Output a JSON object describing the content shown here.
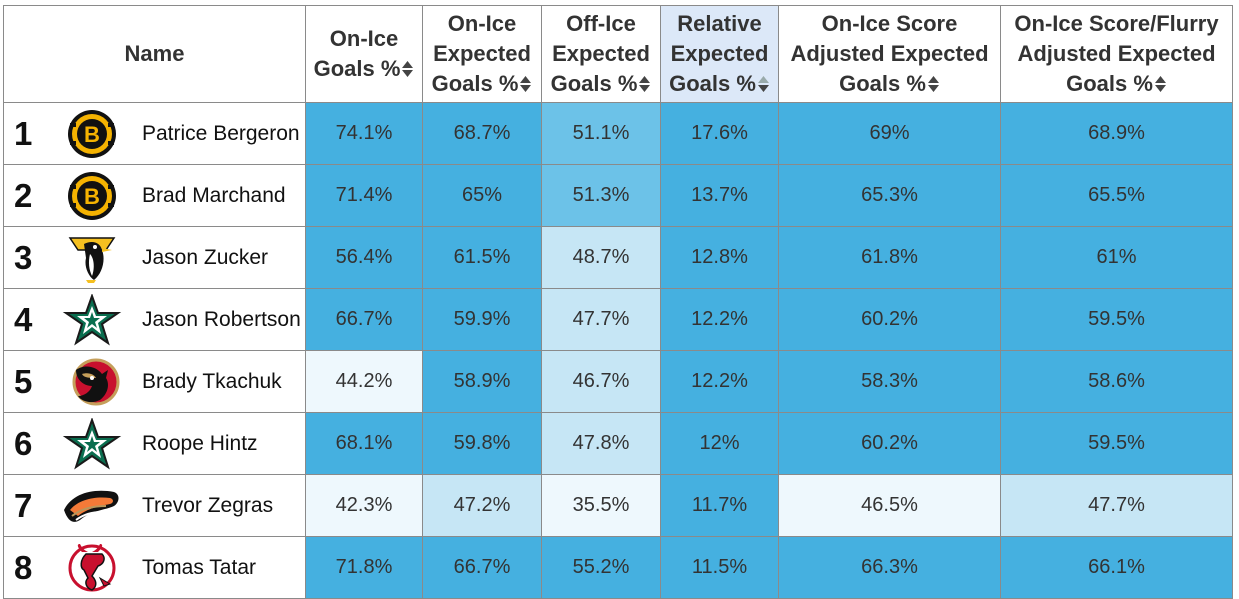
{
  "headers": [
    {
      "label": "Name",
      "sortable": false
    },
    {
      "label": "On-Ice Goals %",
      "sortable": true
    },
    {
      "label": "On-Ice Expected Goals %",
      "sortable": true
    },
    {
      "label": "Off-Ice Expected Goals %",
      "sortable": true
    },
    {
      "label": "Relative Expected Goals %",
      "sortable": true,
      "sorted": true
    },
    {
      "label": "On-Ice Score Adjusted Expected Goals %",
      "sortable": true
    },
    {
      "label": "On-Ice Score/Flurry Adjusted Expected Goals %",
      "sortable": true
    }
  ],
  "colors": {
    "shade_dark": "#45b0e0",
    "shade_mid": "#6cc2e8",
    "shade_light": "#c6e6f5",
    "shade_pale": "#eef8fd",
    "sorted_header": "#dce8f8"
  },
  "rows": [
    {
      "rank": "1",
      "team_icon": "bruins-logo-icon",
      "name": "Patrice Bergeron",
      "values": [
        "74.1%",
        "68.7%",
        "51.1%",
        "17.6%",
        "69%",
        "68.9%"
      ],
      "shades": [
        "dark",
        "dark",
        "mid",
        "dark",
        "dark",
        "dark"
      ]
    },
    {
      "rank": "2",
      "team_icon": "bruins-logo-icon",
      "name": "Brad Marchand",
      "values": [
        "71.4%",
        "65%",
        "51.3%",
        "13.7%",
        "65.3%",
        "65.5%"
      ],
      "shades": [
        "dark",
        "dark",
        "mid",
        "dark",
        "dark",
        "dark"
      ]
    },
    {
      "rank": "3",
      "team_icon": "penguins-logo-icon",
      "name": "Jason Zucker",
      "values": [
        "56.4%",
        "61.5%",
        "48.7%",
        "12.8%",
        "61.8%",
        "61%"
      ],
      "shades": [
        "dark",
        "dark",
        "light",
        "dark",
        "dark",
        "dark"
      ]
    },
    {
      "rank": "4",
      "team_icon": "stars-logo-icon",
      "name": "Jason Robertson",
      "values": [
        "66.7%",
        "59.9%",
        "47.7%",
        "12.2%",
        "60.2%",
        "59.5%"
      ],
      "shades": [
        "dark",
        "dark",
        "light",
        "dark",
        "dark",
        "dark"
      ]
    },
    {
      "rank": "5",
      "team_icon": "senators-logo-icon",
      "name": "Brady Tkachuk",
      "values": [
        "44.2%",
        "58.9%",
        "46.7%",
        "12.2%",
        "58.3%",
        "58.6%"
      ],
      "shades": [
        "pale",
        "dark",
        "light",
        "dark",
        "dark",
        "dark"
      ]
    },
    {
      "rank": "6",
      "team_icon": "stars-logo-icon",
      "name": "Roope Hintz",
      "values": [
        "68.1%",
        "59.8%",
        "47.8%",
        "12%",
        "60.2%",
        "59.5%"
      ],
      "shades": [
        "dark",
        "dark",
        "light",
        "dark",
        "dark",
        "dark"
      ]
    },
    {
      "rank": "7",
      "team_icon": "ducks-logo-icon",
      "name": "Trevor Zegras",
      "values": [
        "42.3%",
        "47.2%",
        "35.5%",
        "11.7%",
        "46.5%",
        "47.7%"
      ],
      "shades": [
        "pale",
        "light",
        "pale",
        "dark",
        "pale",
        "light"
      ]
    },
    {
      "rank": "8",
      "team_icon": "devils-logo-icon",
      "name": "Tomas Tatar",
      "values": [
        "71.8%",
        "66.7%",
        "55.2%",
        "11.5%",
        "66.3%",
        "66.1%"
      ],
      "shades": [
        "dark",
        "dark",
        "dark",
        "dark",
        "dark",
        "dark"
      ]
    }
  ]
}
